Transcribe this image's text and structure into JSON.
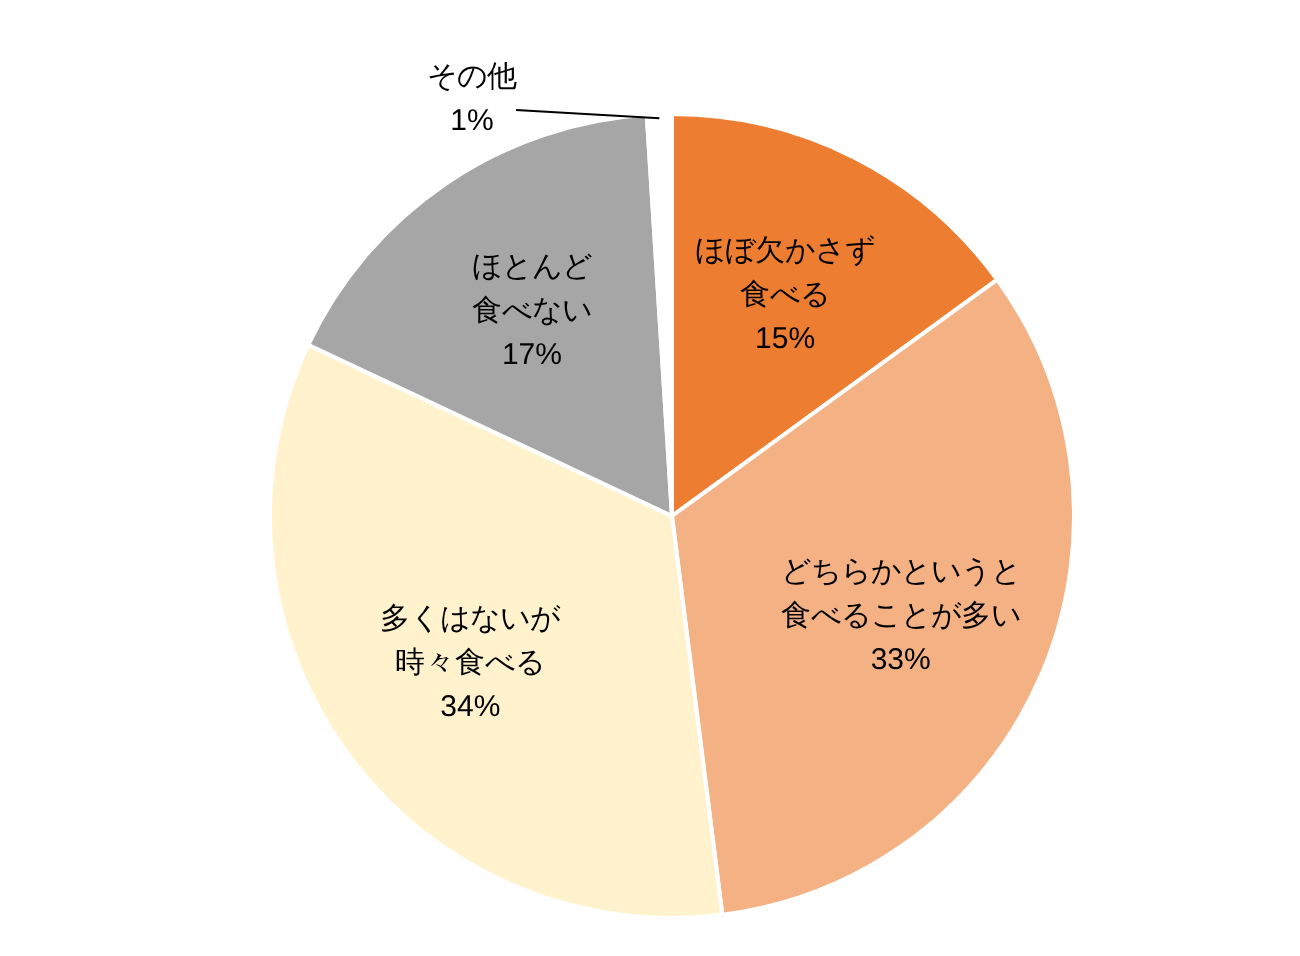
{
  "chart_data": {
    "type": "pie",
    "categories": [
      "ほぼ欠かさず食べる",
      "どちらかというと食べることが多い",
      "多くはないが時々食べる",
      "ほとんど食べない",
      "その他"
    ],
    "values": [
      15,
      33,
      34,
      17,
      1
    ],
    "colors": [
      "#ed7d31",
      "#f4b183",
      "#fff2cc",
      "#a6a6a6",
      "#ffffff"
    ],
    "value_labels": [
      "15%",
      "33%",
      "34%",
      "17%",
      "1%"
    ],
    "legend": false
  }
}
